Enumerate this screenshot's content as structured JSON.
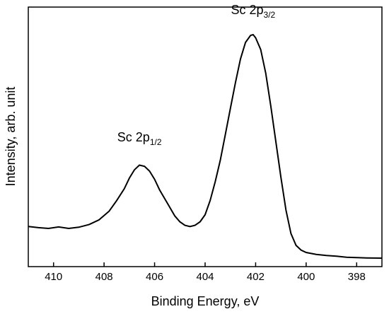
{
  "chart_data": {
    "type": "line",
    "xlabel": "Binding Energy, eV",
    "ylabel": "Intensity, arb. unit",
    "x_reversed": true,
    "xlim": [
      411.0,
      397.0
    ],
    "ylim": [
      0,
      110
    ],
    "y_ticks_shown": false,
    "grid": false,
    "legend": "none",
    "x_ticks": [
      {
        "value": 410,
        "label": "410"
      },
      {
        "value": 408,
        "label": "408"
      },
      {
        "value": 406,
        "label": "406"
      },
      {
        "value": 404,
        "label": "404"
      },
      {
        "value": 402,
        "label": "402"
      },
      {
        "value": 400,
        "label": "400"
      },
      {
        "value": 398,
        "label": "398"
      }
    ],
    "annotations": [
      {
        "base": "Sc 2p",
        "sub": "1/2",
        "x": 406.6,
        "y": 53
      },
      {
        "base": "Sc 2p",
        "sub": "3/2",
        "x": 402.1,
        "y": 107
      }
    ],
    "series": [
      {
        "color": "#000000",
        "points": [
          [
            411.0,
            17.0
          ],
          [
            410.6,
            16.5
          ],
          [
            410.2,
            16.2
          ],
          [
            409.8,
            16.8
          ],
          [
            409.4,
            16.2
          ],
          [
            409.0,
            16.7
          ],
          [
            408.6,
            17.8
          ],
          [
            408.2,
            19.8
          ],
          [
            407.8,
            23.5
          ],
          [
            407.5,
            28.0
          ],
          [
            407.2,
            33.0
          ],
          [
            407.0,
            37.5
          ],
          [
            406.8,
            41.0
          ],
          [
            406.6,
            43.0
          ],
          [
            406.4,
            42.5
          ],
          [
            406.2,
            40.5
          ],
          [
            406.0,
            37.0
          ],
          [
            405.8,
            32.5
          ],
          [
            405.5,
            27.0
          ],
          [
            405.2,
            21.5
          ],
          [
            405.0,
            19.0
          ],
          [
            404.8,
            17.5
          ],
          [
            404.6,
            17.0
          ],
          [
            404.4,
            17.5
          ],
          [
            404.2,
            19.0
          ],
          [
            404.0,
            22.0
          ],
          [
            403.8,
            28.0
          ],
          [
            403.6,
            36.0
          ],
          [
            403.4,
            45.0
          ],
          [
            403.2,
            56.0
          ],
          [
            403.0,
            67.0
          ],
          [
            402.8,
            78.0
          ],
          [
            402.6,
            88.0
          ],
          [
            402.4,
            95.0
          ],
          [
            402.2,
            98.0
          ],
          [
            402.1,
            98.3
          ],
          [
            402.0,
            97.0
          ],
          [
            401.8,
            92.0
          ],
          [
            401.6,
            82.0
          ],
          [
            401.4,
            68.0
          ],
          [
            401.2,
            53.0
          ],
          [
            401.0,
            38.0
          ],
          [
            400.8,
            24.0
          ],
          [
            400.6,
            14.0
          ],
          [
            400.4,
            9.0
          ],
          [
            400.2,
            7.0
          ],
          [
            400.0,
            6.0
          ],
          [
            399.6,
            5.2
          ],
          [
            399.2,
            4.7
          ],
          [
            398.8,
            4.4
          ],
          [
            398.4,
            4.0
          ],
          [
            398.0,
            3.8
          ],
          [
            397.6,
            3.7
          ],
          [
            397.0,
            3.6
          ]
        ]
      }
    ]
  }
}
